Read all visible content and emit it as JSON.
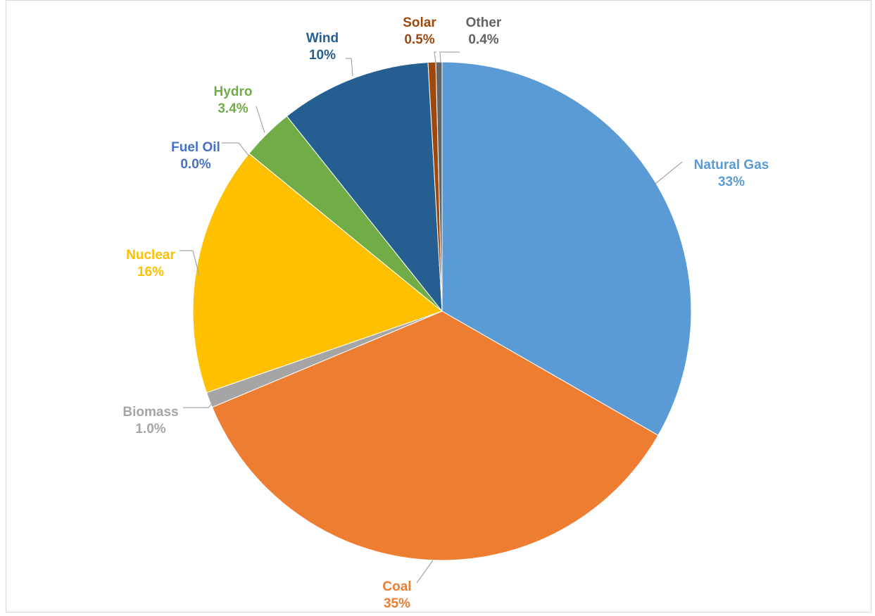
{
  "chart_data": {
    "type": "pie",
    "title": "",
    "legend": "none",
    "start_angle_deg": 0,
    "direction": "clockwise",
    "slices": [
      {
        "name": "Natural Gas",
        "value": 33.3,
        "label": "33%",
        "color": "#5b9bd5"
      },
      {
        "name": "Coal",
        "value": 35.4,
        "label": "35%",
        "color": "#ed7d31"
      },
      {
        "name": "Biomass",
        "value": 1.0,
        "label": "1.0%",
        "color": "#a5a5a5",
        "label_color": "#a5a5a5"
      },
      {
        "name": "Nuclear",
        "value": 16.2,
        "label": "16%",
        "color": "#ffc000"
      },
      {
        "name": "Fuel Oil",
        "value": 0.0,
        "label": "0.0%",
        "color": "#4472c4"
      },
      {
        "name": "Hydro",
        "value": 3.4,
        "label": "3.4%",
        "color": "#70ad47"
      },
      {
        "name": "Wind",
        "value": 9.8,
        "label": "10%",
        "color": "#255e91"
      },
      {
        "name": "Solar",
        "value": 0.5,
        "label": "0.5%",
        "color": "#9e480e"
      },
      {
        "name": "Other",
        "value": 0.4,
        "label": "0.4%",
        "color": "#636363"
      }
    ]
  }
}
